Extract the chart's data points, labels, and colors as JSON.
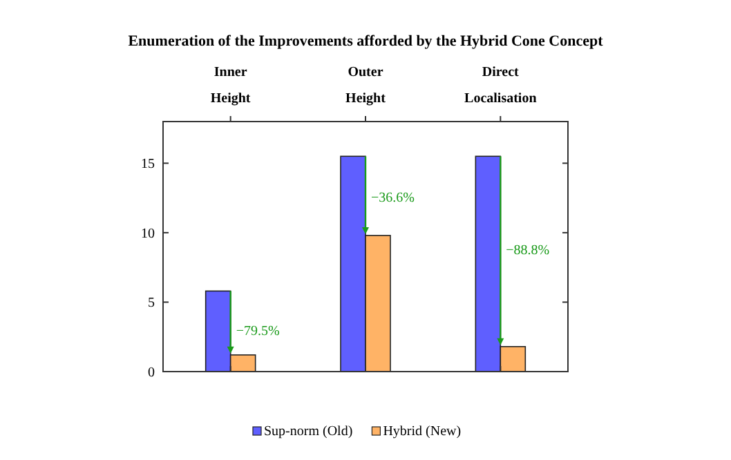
{
  "chart_data": {
    "type": "bar",
    "title": "Enumeration of the Improvements afforded by the Hybrid Cone Concept",
    "categories": [
      "Inner\nHeight",
      "Outer\nHeight",
      "Direct\nLocalisation"
    ],
    "series": [
      {
        "name": "Sup-norm (Old)",
        "color": "#5f5fff",
        "values": [
          5.8,
          15.5,
          15.5
        ]
      },
      {
        "name": "Hybrid (New)",
        "color": "#ffb366",
        "values": [
          1.2,
          9.8,
          1.8
        ]
      }
    ],
    "ylim": [
      0,
      18
    ],
    "yticks": [
      0,
      5,
      10,
      15
    ],
    "grid": false,
    "legend": "bottom",
    "annotations": [
      {
        "text": "−79.5%",
        "x": "Inner\nHeight",
        "y": 3
      },
      {
        "text": "−36.6%",
        "x": "Outer\nHeight",
        "y": 12.6
      },
      {
        "text": "−88.8%",
        "x": "Direct\nLocalisation",
        "y": 8.8
      }
    ]
  }
}
